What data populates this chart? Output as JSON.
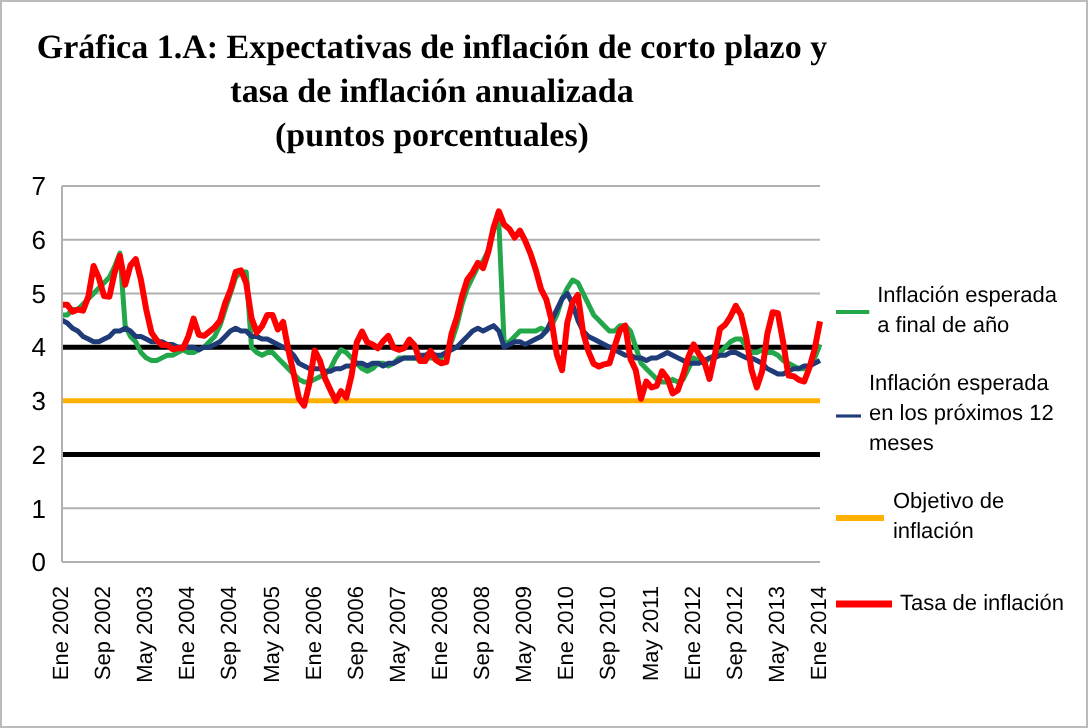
{
  "chart_data": {
    "type": "line",
    "title": "Gráfica 1.A: Expectativas de inflación de corto plazo y tasa de inflación anualizada",
    "subtitle": "(puntos porcentuales)",
    "categories": [
      "Ene 2002",
      null,
      null,
      null,
      null,
      null,
      null,
      null,
      "Sep 2002",
      null,
      null,
      null,
      null,
      null,
      null,
      null,
      "May 2003",
      null,
      null,
      null,
      null,
      null,
      null,
      null,
      "Ene 2004",
      null,
      null,
      null,
      null,
      null,
      null,
      null,
      "Sep 2004",
      null,
      null,
      null,
      null,
      null,
      null,
      null,
      "May 2005",
      null,
      null,
      null,
      null,
      null,
      null,
      null,
      "Ene 2006",
      null,
      null,
      null,
      null,
      null,
      null,
      null,
      "Sep 2006",
      null,
      null,
      null,
      null,
      null,
      null,
      null,
      "May 2007",
      null,
      null,
      null,
      null,
      null,
      null,
      null,
      "Ene 2008",
      null,
      null,
      null,
      null,
      null,
      null,
      null,
      "Sep 2008",
      null,
      null,
      null,
      null,
      null,
      null,
      null,
      "May 2009",
      null,
      null,
      null,
      null,
      null,
      null,
      null,
      "Ene 2010",
      null,
      null,
      null,
      null,
      null,
      null,
      null,
      "Sep 2010",
      null,
      null,
      null,
      null,
      null,
      null,
      null,
      "May 2011",
      null,
      null,
      null,
      null,
      null,
      null,
      null,
      "Ene 2012",
      null,
      null,
      null,
      null,
      null,
      null,
      null,
      "Sep 2012",
      null,
      null,
      null,
      null,
      null,
      null,
      null,
      "May 2013",
      null,
      null,
      null,
      null,
      null,
      null,
      null,
      "Ene 2014"
    ],
    "series": [
      {
        "color": "#000000",
        "values": [
          4,
          4,
          4,
          4,
          4,
          4,
          4,
          4,
          4,
          4,
          4,
          4,
          4,
          4,
          4,
          4,
          4,
          4,
          4,
          4,
          4,
          4,
          4,
          4,
          4,
          4,
          4,
          4,
          4,
          4,
          4,
          4,
          4,
          4,
          4,
          4,
          4,
          4,
          4,
          4,
          4,
          4,
          4,
          4,
          4,
          4,
          4,
          4,
          4,
          4,
          4,
          4,
          4,
          4,
          4,
          4,
          4,
          4,
          4,
          4,
          4,
          4,
          4,
          4,
          4,
          4,
          4,
          4,
          4,
          4,
          4,
          4,
          4,
          4,
          4,
          4,
          4,
          4,
          4,
          4,
          4,
          4,
          4,
          4,
          4,
          4,
          4,
          4,
          4,
          4,
          4,
          4,
          4,
          4,
          4,
          4,
          4,
          4,
          4,
          4,
          4,
          4,
          4,
          4,
          4,
          4,
          4,
          4,
          4,
          4,
          4,
          4,
          4,
          4,
          4,
          4,
          4,
          4,
          4,
          4,
          4,
          4,
          4,
          4,
          4,
          4,
          4,
          4,
          4,
          4,
          4,
          4,
          4,
          4,
          4,
          4,
          4,
          4,
          4,
          4,
          4,
          4,
          4,
          4,
          4
        ]
      },
      {
        "color": "#000000",
        "values": [
          2,
          2,
          2,
          2,
          2,
          2,
          2,
          2,
          2,
          2,
          2,
          2,
          2,
          2,
          2,
          2,
          2,
          2,
          2,
          2,
          2,
          2,
          2,
          2,
          2,
          2,
          2,
          2,
          2,
          2,
          2,
          2,
          2,
          2,
          2,
          2,
          2,
          2,
          2,
          2,
          2,
          2,
          2,
          2,
          2,
          2,
          2,
          2,
          2,
          2,
          2,
          2,
          2,
          2,
          2,
          2,
          2,
          2,
          2,
          2,
          2,
          2,
          2,
          2,
          2,
          2,
          2,
          2,
          2,
          2,
          2,
          2,
          2,
          2,
          2,
          2,
          2,
          2,
          2,
          2,
          2,
          2,
          2,
          2,
          2,
          2,
          2,
          2,
          2,
          2,
          2,
          2,
          2,
          2,
          2,
          2,
          2,
          2,
          2,
          2,
          2,
          2,
          2,
          2,
          2,
          2,
          2,
          2,
          2,
          2,
          2,
          2,
          2,
          2,
          2,
          2,
          2,
          2,
          2,
          2,
          2,
          2,
          2,
          2,
          2,
          2,
          2,
          2,
          2,
          2,
          2,
          2,
          2,
          2,
          2,
          2,
          2,
          2,
          2,
          2,
          2,
          2,
          2,
          2,
          2
        ]
      },
      {
        "name": "Inflación esperada a final de año",
        "color": "#22a84a",
        "values": [
          4.6,
          4.6,
          4.7,
          4.7,
          4.8,
          4.9,
          5.0,
          5.1,
          5.2,
          5.3,
          5.5,
          5.75,
          4.4,
          4.2,
          4.1,
          3.9,
          3.8,
          3.75,
          3.75,
          3.8,
          3.85,
          3.85,
          3.9,
          3.95,
          3.9,
          3.9,
          3.95,
          4.0,
          4.1,
          4.2,
          4.4,
          4.7,
          5.0,
          5.3,
          5.4,
          5.4,
          4.0,
          3.9,
          3.85,
          3.9,
          3.9,
          3.8,
          3.7,
          3.6,
          3.5,
          3.4,
          3.35,
          3.35,
          3.4,
          3.45,
          3.5,
          3.6,
          3.8,
          3.95,
          3.9,
          3.8,
          3.7,
          3.6,
          3.55,
          3.6,
          3.7,
          3.7,
          3.65,
          3.7,
          3.8,
          3.8,
          3.8,
          3.8,
          3.75,
          3.8,
          3.8,
          3.8,
          3.8,
          3.9,
          4.1,
          4.4,
          4.8,
          5.1,
          5.3,
          5.5,
          5.6,
          5.8,
          6.2,
          6.3,
          4.05,
          4.1,
          4.2,
          4.3,
          4.3,
          4.3,
          4.3,
          4.35,
          4.3,
          4.4,
          4.6,
          4.9,
          5.1,
          5.25,
          5.2,
          5.0,
          4.8,
          4.6,
          4.5,
          4.4,
          4.3,
          4.3,
          4.4,
          4.4,
          4.3,
          4.0,
          3.7,
          3.6,
          3.5,
          3.4,
          3.35,
          3.35,
          3.4,
          3.35,
          3.4,
          3.6,
          3.8,
          3.75,
          3.7,
          3.8,
          3.85,
          3.9,
          4.0,
          4.1,
          4.15,
          4.15,
          4.0,
          3.9,
          3.9,
          3.95,
          3.9,
          3.9,
          3.85,
          3.75,
          3.7,
          3.65,
          3.6,
          3.6,
          3.65,
          3.8,
          4.05
        ]
      },
      {
        "name": "Inflación esperada en los próximos 12 meses",
        "color": "#1f3c78",
        "values": [
          4.5,
          4.45,
          4.35,
          4.3,
          4.2,
          4.15,
          4.1,
          4.1,
          4.15,
          4.2,
          4.3,
          4.3,
          4.35,
          4.3,
          4.2,
          4.2,
          4.15,
          4.1,
          4.1,
          4.1,
          4.05,
          4.05,
          4.0,
          4.0,
          4.0,
          4.0,
          3.95,
          4.0,
          4.0,
          4.05,
          4.1,
          4.2,
          4.3,
          4.35,
          4.3,
          4.3,
          4.2,
          4.2,
          4.15,
          4.15,
          4.1,
          4.05,
          4.0,
          3.95,
          3.85,
          3.7,
          3.65,
          3.6,
          3.6,
          3.6,
          3.55,
          3.55,
          3.6,
          3.6,
          3.65,
          3.65,
          3.7,
          3.7,
          3.65,
          3.7,
          3.7,
          3.65,
          3.7,
          3.7,
          3.75,
          3.8,
          3.8,
          3.8,
          3.85,
          3.85,
          3.9,
          3.85,
          3.85,
          3.9,
          3.95,
          4.0,
          4.1,
          4.2,
          4.3,
          4.35,
          4.3,
          4.35,
          4.4,
          4.3,
          4.0,
          4.05,
          4.1,
          4.1,
          4.05,
          4.1,
          4.15,
          4.2,
          4.3,
          4.5,
          4.7,
          4.9,
          5.0,
          4.8,
          4.5,
          4.3,
          4.2,
          4.15,
          4.1,
          4.05,
          4.0,
          3.95,
          3.9,
          3.85,
          3.85,
          3.8,
          3.8,
          3.75,
          3.8,
          3.8,
          3.85,
          3.9,
          3.85,
          3.8,
          3.75,
          3.7,
          3.7,
          3.7,
          3.75,
          3.8,
          3.8,
          3.85,
          3.85,
          3.9,
          3.9,
          3.85,
          3.8,
          3.8,
          3.75,
          3.7,
          3.6,
          3.55,
          3.5,
          3.5,
          3.55,
          3.6,
          3.6,
          3.65,
          3.65,
          3.7,
          3.75
        ]
      },
      {
        "name": "Objetivo de inflación",
        "color": "#ffb000",
        "values": [
          3,
          3,
          3,
          3,
          3,
          3,
          3,
          3,
          3,
          3,
          3,
          3,
          3,
          3,
          3,
          3,
          3,
          3,
          3,
          3,
          3,
          3,
          3,
          3,
          3,
          3,
          3,
          3,
          3,
          3,
          3,
          3,
          3,
          3,
          3,
          3,
          3,
          3,
          3,
          3,
          3,
          3,
          3,
          3,
          3,
          3,
          3,
          3,
          3,
          3,
          3,
          3,
          3,
          3,
          3,
          3,
          3,
          3,
          3,
          3,
          3,
          3,
          3,
          3,
          3,
          3,
          3,
          3,
          3,
          3,
          3,
          3,
          3,
          3,
          3,
          3,
          3,
          3,
          3,
          3,
          3,
          3,
          3,
          3,
          3,
          3,
          3,
          3,
          3,
          3,
          3,
          3,
          3,
          3,
          3,
          3,
          3,
          3,
          3,
          3,
          3,
          3,
          3,
          3,
          3,
          3,
          3,
          3,
          3,
          3,
          3,
          3,
          3,
          3,
          3,
          3,
          3,
          3,
          3,
          3,
          3,
          3,
          3,
          3,
          3,
          3,
          3,
          3,
          3,
          3,
          3,
          3,
          3,
          3,
          3,
          3,
          3,
          3,
          3,
          3,
          3,
          3,
          3,
          3,
          3
        ]
      },
      {
        "name": "Tasa de inflación",
        "color": "#ff0000",
        "values": [
          4.79,
          4.79,
          4.66,
          4.7,
          4.68,
          4.94,
          5.51,
          5.29,
          4.95,
          4.94,
          5.39,
          5.7,
          5.16,
          5.52,
          5.64,
          5.25,
          4.7,
          4.27,
          4.13,
          4.04,
          4.04,
          3.96,
          3.98,
          3.98,
          4.2,
          4.53,
          4.23,
          4.21,
          4.29,
          4.37,
          4.49,
          4.82,
          5.06,
          5.4,
          5.43,
          5.19,
          4.54,
          4.27,
          4.39,
          4.6,
          4.6,
          4.33,
          4.47,
          3.95,
          3.51,
          3.05,
          2.91,
          3.33,
          3.94,
          3.75,
          3.41,
          3.2,
          3.0,
          3.18,
          3.06,
          3.47,
          4.09,
          4.29,
          4.09,
          4.05,
          3.98,
          4.11,
          4.21,
          3.99,
          3.95,
          3.98,
          4.14,
          4.03,
          3.74,
          3.74,
          3.93,
          3.76,
          3.7,
          3.72,
          4.25,
          4.55,
          4.95,
          5.26,
          5.39,
          5.57,
          5.47,
          5.78,
          6.23,
          6.53,
          6.28,
          6.2,
          6.04,
          6.17,
          5.98,
          5.74,
          5.44,
          5.08,
          4.89,
          4.5,
          3.86,
          3.57,
          4.46,
          4.83,
          4.97,
          4.27,
          3.92,
          3.69,
          3.64,
          3.68,
          3.7,
          4.02,
          4.32,
          4.4,
          3.78,
          3.57,
          3.04,
          3.36,
          3.25,
          3.28,
          3.55,
          3.42,
          3.14,
          3.2,
          3.48,
          3.82,
          4.05,
          3.87,
          3.73,
          3.41,
          3.85,
          4.34,
          4.42,
          4.57,
          4.77,
          4.6,
          4.18,
          3.57,
          3.25,
          3.55,
          4.25,
          4.65,
          4.63,
          4.09,
          3.47,
          3.46,
          3.39,
          3.36,
          3.62,
          3.97,
          4.48
        ]
      }
    ],
    "ylim": [
      0,
      7
    ],
    "yticks": [
      0,
      1,
      2,
      3,
      4,
      5,
      6,
      7
    ],
    "grid": "y",
    "legend": "right",
    "marker": "none",
    "line_style": "solid"
  }
}
